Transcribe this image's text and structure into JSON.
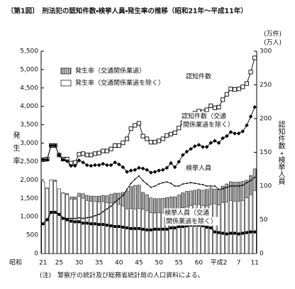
{
  "chart_data": {
    "type": "bar-line",
    "title": "〔第1図〕　刑法犯の認知件数・検挙人員・発生率の推移（昭和21年～平成11年）",
    "ylabel": "発生率",
    "y2label": "認知件数・検挙人員",
    "y2units": [
      "(万件)",
      "(万人)"
    ],
    "x_era_label": "昭和",
    "note": "(注)　警察庁の統計及び総務省統計局の人口資料による。",
    "categories": [
      "21",
      null,
      null,
      null,
      "25",
      null,
      null,
      null,
      null,
      "30",
      null,
      null,
      null,
      null,
      "35",
      null,
      null,
      null,
      null,
      "40",
      null,
      null,
      null,
      null,
      "45",
      null,
      null,
      null,
      null,
      "50",
      null,
      null,
      null,
      null,
      "55",
      null,
      null,
      null,
      null,
      "60",
      null,
      null,
      null,
      null,
      "平成2",
      null,
      null,
      null,
      null,
      "7",
      null,
      null,
      null,
      "11"
    ],
    "ylim": [
      0,
      5500
    ],
    "yticks": [
      0,
      500,
      {
        "value": 1000,
        "label": "1,000"
      },
      {
        "value": 1500,
        "label": "1,500"
      },
      {
        "value": 2000,
        "label": "2,000"
      },
      {
        "value": 2500,
        "label": "2,500"
      },
      {
        "value": 3000,
        "label": "3,000"
      },
      {
        "value": 3500,
        "label": "3,500"
      },
      {
        "value": 4000,
        "label": "4,000"
      },
      {
        "value": 4500,
        "label": "4,500"
      },
      {
        "value": 5000,
        "label": "5,000"
      },
      {
        "value": 5500,
        "label": "5,500"
      }
    ],
    "y2lim": [
      0,
      300
    ],
    "y2ticks": [
      0,
      50,
      100,
      150,
      200,
      250,
      300
    ],
    "legend": "upper-left",
    "series": [
      {
        "name": "発生率（交通関係業過）",
        "kind": "bar",
        "fill": "hatch",
        "color": "#000000",
        "values": [
          1950,
          1780,
          2000,
          2000,
          1760,
          1650,
          1630,
          1540,
          1535,
          1640,
          1625,
          1580,
          1560,
          1560,
          1560,
          1580,
          1570,
          1610,
          1640,
          1640,
          1660,
          1700,
          1820,
          1850,
          1860,
          1660,
          1600,
          1510,
          1490,
          1490,
          1500,
          1520,
          1540,
          1540,
          1590,
          1650,
          1690,
          1700,
          1720,
          1740,
          1720,
          1740,
          1780,
          1750,
          1750,
          1830,
          1890,
          1950,
          1940,
          1940,
          1960,
          1990,
          2120,
          2300
        ]
      },
      {
        "name": "発生率（交通関係業過を除く）",
        "kind": "bar",
        "fill": "#ffffff",
        "color": "#000000",
        "values": [
          1950,
          1770,
          2000,
          1960,
          1760,
          1640,
          1600,
          1480,
          1470,
          1550,
          1500,
          1440,
          1420,
          1420,
          1400,
          1410,
          1380,
          1370,
          1390,
          1340,
          1290,
          1210,
          1220,
          1210,
          1220,
          1200,
          1160,
          1110,
          1100,
          1110,
          1100,
          1120,
          1170,
          1100,
          1170,
          1240,
          1270,
          1300,
          1330,
          1330,
          1300,
          1290,
          1330,
          1350,
          1320,
          1380,
          1400,
          1440,
          1420,
          1420,
          1440,
          1510,
          1600,
          1710
        ]
      },
      {
        "label": [
          "認知件数"
        ],
        "kind": "line",
        "axis": "y2",
        "marker": "open-square",
        "color": "#000000",
        "values": [
          139,
          140,
          160,
          160,
          146,
          140,
          140,
          134,
          135,
          147,
          148,
          146,
          146,
          148,
          149,
          152,
          152,
          155,
          160,
          160,
          164,
          170,
          185,
          190,
          193,
          174,
          170,
          165,
          165,
          167,
          170,
          175,
          177,
          179,
          186,
          194,
          201,
          204,
          208,
          211,
          210,
          213,
          219,
          216,
          217,
          228,
          236,
          244,
          243,
          244,
          247,
          252,
          269,
          290
        ]
      },
      {
        "label": [
          "認知件数（交通",
          "関係業過を除く）"
        ],
        "kind": "line",
        "axis": "y2",
        "marker": "diamond",
        "color": "#000000",
        "values": [
          139,
          139,
          160,
          160,
          146,
          139,
          137,
          130,
          130,
          138,
          135,
          131,
          130,
          131,
          131,
          133,
          131,
          131,
          135,
          132,
          128,
          121,
          123,
          124,
          127,
          126,
          124,
          120,
          121,
          123,
          124,
          127,
          134,
          128,
          136,
          146,
          151,
          155,
          159,
          161,
          158,
          158,
          164,
          167,
          164,
          171,
          174,
          180,
          178,
          178,
          181,
          190,
          203,
          217
        ]
      },
      {
        "label": [
          "検挙人員"
        ],
        "kind": "line",
        "axis": "y2",
        "marker": "dot",
        "color": "#000000",
        "values": [
          44,
          50,
          62,
          62,
          58,
          53,
          52,
          52,
          52,
          53,
          52,
          53,
          54,
          56,
          58,
          62,
          66,
          70,
          76,
          81,
          86,
          95,
          104,
          110,
          115,
          108,
          103,
          98,
          100,
          103,
          105,
          106,
          104,
          100,
          100,
          103,
          104,
          105,
          104,
          103,
          102,
          100,
          100,
          100,
          95,
          96,
          98,
          100,
          100,
          100,
          101,
          105,
          108,
          113
        ]
      },
      {
        "label": [
          "検挙人員（交通",
          "関係業過を除く）"
        ],
        "kind": "line",
        "axis": "y2",
        "marker": "square",
        "color": "#000000",
        "values": [
          44,
          50,
          61,
          61,
          58,
          52,
          50,
          48,
          47,
          47,
          45,
          45,
          44,
          44,
          43,
          43,
          42,
          41,
          40,
          40,
          39,
          38,
          37,
          37,
          37,
          36,
          35,
          35,
          36,
          36,
          36,
          36,
          38,
          38,
          40,
          40,
          41,
          42,
          42,
          42,
          41,
          39,
          38,
          32,
          31,
          30,
          29,
          30,
          30,
          29,
          30,
          31,
          32,
          32
        ]
      }
    ]
  }
}
